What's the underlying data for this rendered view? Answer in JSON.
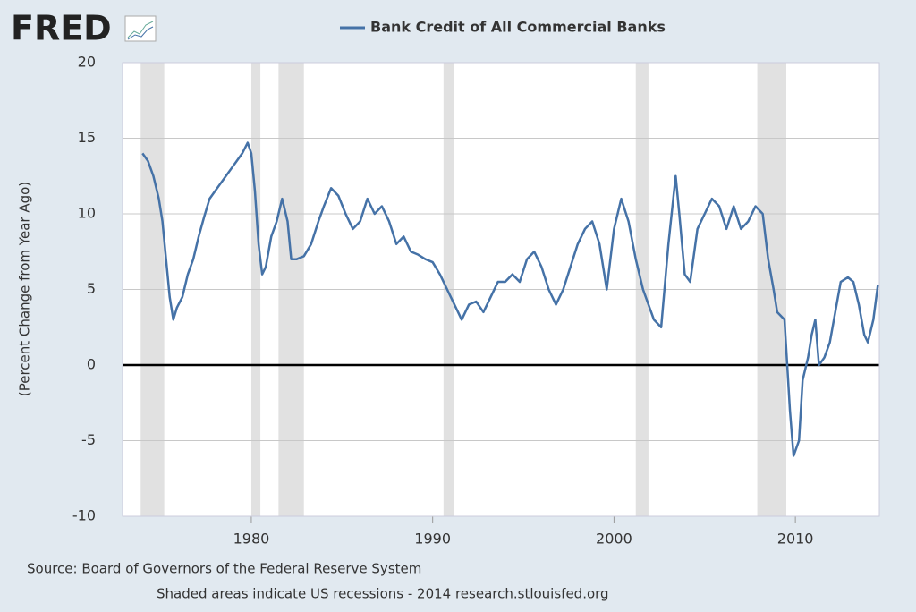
{
  "chart_data": {
    "type": "line",
    "logo": "FRED",
    "title": "Bank Credit of All Commercial Banks",
    "ylabel": "(Percent Change from Year Ago)",
    "source": "Source: Board of Governors of the Federal Reserve System",
    "note": "Shaded areas indicate US recessions - 2014 research.stlouisfed.org",
    "xlim": [
      1972.9,
      2014.63
    ],
    "xticks": [
      1980,
      1990,
      2000,
      2010
    ],
    "ylim": [
      -10,
      20
    ],
    "yticks": [
      -10,
      -5,
      0,
      5,
      10,
      15,
      20
    ],
    "grid": true,
    "zero_line": 0,
    "recessions": [
      [
        1973.9,
        1975.2
      ],
      [
        1980.0,
        1980.5
      ],
      [
        1981.5,
        1982.9
      ],
      [
        1990.6,
        1991.2
      ],
      [
        2001.2,
        2001.9
      ],
      [
        2007.9,
        2009.5
      ]
    ],
    "x": [
      1974.0,
      1974.3,
      1974.6,
      1974.9,
      1975.1,
      1975.3,
      1975.5,
      1975.7,
      1975.9,
      1976.2,
      1976.5,
      1976.8,
      1977.1,
      1977.4,
      1977.7,
      1978.0,
      1978.3,
      1978.6,
      1978.9,
      1979.2,
      1979.5,
      1979.8,
      1980.0,
      1980.2,
      1980.4,
      1980.6,
      1980.8,
      1981.1,
      1981.4,
      1981.7,
      1982.0,
      1982.2,
      1982.5,
      1982.9,
      1983.3,
      1983.7,
      1984.0,
      1984.4,
      1984.8,
      1985.2,
      1985.6,
      1986.0,
      1986.4,
      1986.8,
      1987.2,
      1987.6,
      1988.0,
      1988.4,
      1988.8,
      1989.2,
      1989.6,
      1990.0,
      1990.4,
      1990.8,
      1991.2,
      1991.6,
      1992.0,
      1992.4,
      1992.8,
      1993.2,
      1993.6,
      1994.0,
      1994.4,
      1994.8,
      1995.2,
      1995.6,
      1996.0,
      1996.4,
      1996.8,
      1997.2,
      1997.6,
      1998.0,
      1998.4,
      1998.8,
      1999.2,
      1999.6,
      2000.0,
      2000.4,
      2000.8,
      2001.2,
      2001.6,
      2001.9,
      2002.2,
      2002.6,
      2003.0,
      2003.4,
      2003.6,
      2003.9,
      2004.2,
      2004.6,
      2005.0,
      2005.4,
      2005.8,
      2006.2,
      2006.6,
      2007.0,
      2007.4,
      2007.8,
      2008.2,
      2008.5,
      2008.8,
      2009.0,
      2009.4,
      2009.7,
      2009.9,
      2010.2,
      2010.4,
      2010.7,
      2010.9,
      2011.1,
      2011.3,
      2011.6,
      2011.9,
      2012.2,
      2012.5,
      2012.9,
      2013.2,
      2013.5,
      2013.8,
      2014.0,
      2014.3,
      2014.55
    ],
    "series": [
      {
        "name": "Bank Credit of All Commercial Banks",
        "color": "#4572a7",
        "values": [
          14.0,
          13.5,
          12.5,
          11.0,
          9.5,
          7.0,
          4.5,
          3.0,
          3.8,
          4.5,
          6.0,
          7.0,
          8.5,
          9.8,
          11.0,
          11.5,
          12.0,
          12.5,
          13.0,
          13.5,
          14.0,
          14.7,
          14.0,
          11.5,
          8.0,
          6.0,
          6.5,
          8.5,
          9.5,
          11.0,
          9.5,
          7.0,
          7.0,
          7.2,
          8.0,
          9.5,
          10.5,
          11.7,
          11.2,
          10.0,
          9.0,
          9.5,
          11.0,
          10.0,
          10.5,
          9.5,
          8.0,
          8.5,
          7.5,
          7.3,
          7.0,
          6.8,
          6.0,
          5.0,
          4.0,
          3.0,
          4.0,
          4.2,
          3.5,
          4.5,
          5.5,
          5.5,
          6.0,
          5.5,
          7.0,
          7.5,
          6.5,
          5.0,
          4.0,
          5.0,
          6.5,
          8.0,
          9.0,
          9.5,
          8.0,
          5.0,
          9.0,
          11.0,
          9.5,
          7.0,
          5.0,
          4.0,
          3.0,
          2.5,
          8.0,
          12.5,
          10.0,
          6.0,
          5.5,
          9.0,
          10.0,
          11.0,
          10.5,
          9.0,
          10.5,
          9.0,
          9.5,
          10.5,
          10.0,
          7.0,
          5.0,
          3.5,
          3.0,
          -3.0,
          -6.0,
          -5.0,
          -1.0,
          0.5,
          2.0,
          3.0,
          0.0,
          0.5,
          1.5,
          3.5,
          5.5,
          5.8,
          5.5,
          4.0,
          2.0,
          1.5,
          3.0,
          5.3
        ]
      }
    ]
  }
}
